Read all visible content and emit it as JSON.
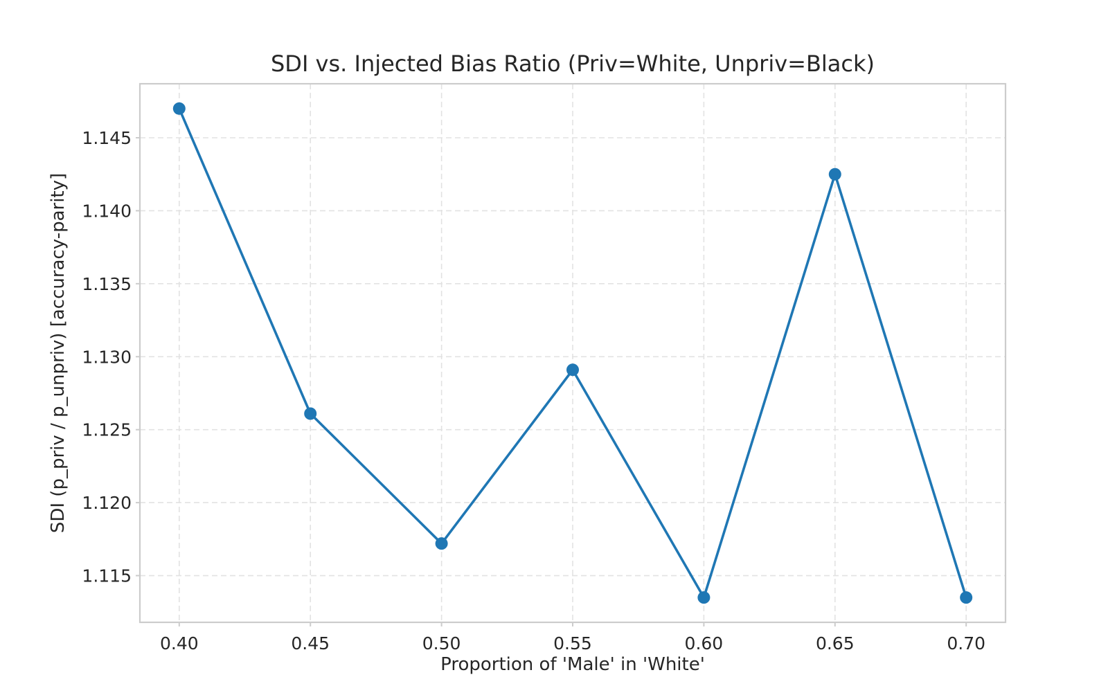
{
  "chart_data": {
    "type": "line",
    "title": "SDI vs. Injected Bias Ratio  (Priv=White, Unpriv=Black)",
    "xlabel": "Proportion of 'Male' in 'White'",
    "ylabel": "SDI (p_priv / p_unpriv)  [accuracy-parity]",
    "xlim": [
      0.385,
      0.715
    ],
    "ylim": [
      1.1118,
      1.1487
    ],
    "xticks": [
      0.4,
      0.45,
      0.5,
      0.55,
      0.6,
      0.65,
      0.7
    ],
    "xtick_labels": [
      "0.40",
      "0.45",
      "0.50",
      "0.55",
      "0.60",
      "0.65",
      "0.70"
    ],
    "yticks": [
      1.115,
      1.12,
      1.125,
      1.13,
      1.135,
      1.14,
      1.145
    ],
    "ytick_labels": [
      "1.115",
      "1.120",
      "1.125",
      "1.130",
      "1.135",
      "1.140",
      "1.145"
    ],
    "grid": true,
    "series": [
      {
        "color": "#1f77b4",
        "marker": "circle",
        "x": [
          0.4,
          0.45,
          0.5,
          0.55,
          0.6,
          0.65,
          0.7
        ],
        "y": [
          1.147,
          1.1261,
          1.1172,
          1.1291,
          1.1135,
          1.1425,
          1.1135
        ]
      }
    ]
  }
}
